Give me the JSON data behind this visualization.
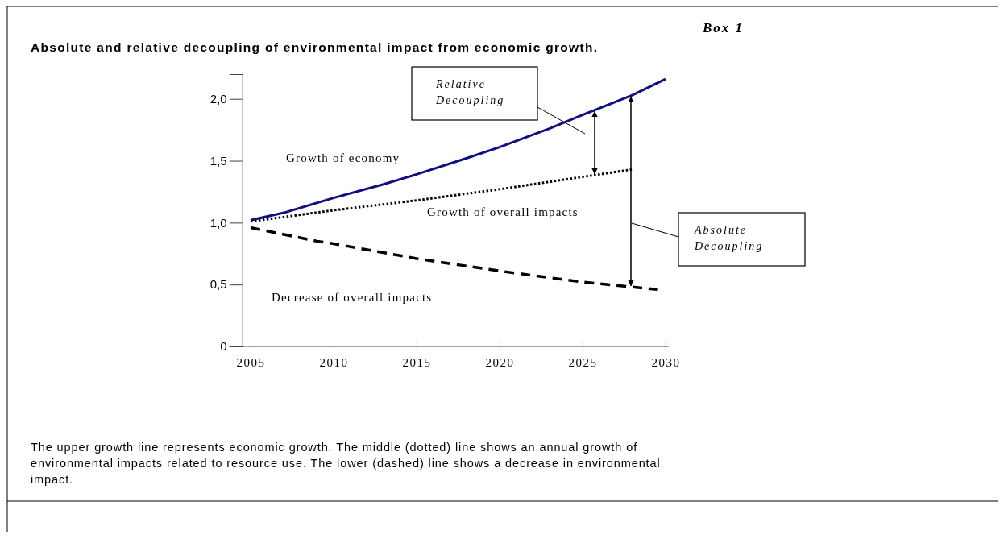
{
  "chart_data": {
    "type": "line",
    "title": "Absolute and relative decoupling of environmental impact from economic growth.",
    "subtitle": "Box 1",
    "xlim": [
      2004.5,
      2030.2
    ],
    "xticks": [
      2005,
      2010,
      2015,
      2020,
      2025,
      2030
    ],
    "ylim": [
      0,
      2.2
    ],
    "yticks": [
      0,
      {
        "value": 0.5,
        "label": "0,5"
      },
      {
        "value": 1,
        "label": "1,0"
      },
      {
        "value": 1.5,
        "label": "1,5"
      },
      {
        "value": 2,
        "label": "2,0"
      }
    ],
    "grid": false,
    "series": [
      {
        "name": "Growth of economy",
        "color": "#0f0f80",
        "line_style": "solid",
        "x": [
          2005,
          2007,
          2010,
          2013,
          2015,
          2018,
          2020,
          2023,
          2025,
          2028,
          2030
        ],
        "values": [
          1.02,
          1.08,
          1.2,
          1.31,
          1.39,
          1.52,
          1.61,
          1.76,
          1.87,
          2.03,
          2.16
        ]
      },
      {
        "name": "Growth of overall impacts",
        "color": "#000000",
        "line_style": "dotted",
        "x": [
          2005,
          2010,
          2015,
          2020,
          2025,
          2028
        ],
        "values": [
          1.01,
          1.1,
          1.18,
          1.27,
          1.37,
          1.43
        ]
      },
      {
        "name": "Decrease of overall impacts",
        "color": "#000000",
        "line_style": "dashed",
        "x": [
          2005,
          2009,
          2010,
          2015,
          2020,
          2025,
          2028,
          2029.5
        ],
        "values": [
          0.96,
          0.85,
          0.83,
          0.71,
          0.61,
          0.52,
          0.48,
          0.46
        ]
      }
    ],
    "annotations": [
      "Relative Decoupling",
      "Absolute Decoupling",
      "The upper growth line represents economic growth. The middle (dotted) line shows an annual growth of environmental impacts related to resource use. The lower (dashed) line shows a decrease in environmental impact."
    ]
  }
}
